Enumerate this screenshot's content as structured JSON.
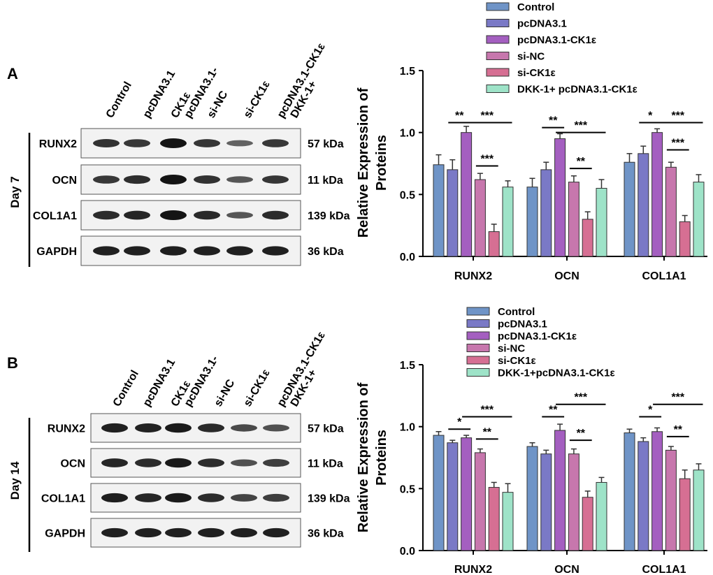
{
  "panels": [
    {
      "letter": "A",
      "day_label": "Day 7",
      "lane_labels": [
        {
          "lines": [
            "Control"
          ]
        },
        {
          "lines": [
            "pcDNA3.1"
          ]
        },
        {
          "lines": [
            "pcDNA3.1-",
            "CK1ε"
          ]
        },
        {
          "lines": [
            "si-NC"
          ]
        },
        {
          "lines": [
            "si-CK1ε"
          ]
        },
        {
          "lines": [
            "DKK-1+",
            "pcDNA3.1-CK1ε"
          ]
        }
      ],
      "blots": [
        {
          "name": "RUNX2",
          "kda": "57 kDa",
          "intensity": [
            0.75,
            0.7,
            1.0,
            0.72,
            0.35,
            0.7
          ]
        },
        {
          "name": "OCN",
          "kda": "11 kDa",
          "intensity": [
            0.7,
            0.78,
            1.0,
            0.75,
            0.45,
            0.72
          ]
        },
        {
          "name": "COL1A1",
          "kda": "139 kDa",
          "intensity": [
            0.8,
            0.85,
            1.0,
            0.82,
            0.45,
            0.8
          ]
        },
        {
          "name": "GAPDH",
          "kda": "36 kDa",
          "intensity": [
            0.9,
            0.9,
            0.92,
            0.9,
            0.9,
            0.9
          ]
        }
      ]
    },
    {
      "letter": "B",
      "day_label": "Day 14",
      "lane_labels": [
        {
          "lines": [
            "Control"
          ]
        },
        {
          "lines": [
            "pcDNA3.1"
          ]
        },
        {
          "lines": [
            "pcDNA3.1-",
            "CK1ε"
          ]
        },
        {
          "lines": [
            "si-NC"
          ]
        },
        {
          "lines": [
            "si-CK1ε"
          ]
        },
        {
          "lines": [
            "DKK-1+",
            "pcDNA3.1-CK1ε"
          ]
        }
      ],
      "blots": [
        {
          "name": "RUNX2",
          "kda": "57 kDa",
          "intensity": [
            0.9,
            0.88,
            0.95,
            0.82,
            0.55,
            0.5
          ]
        },
        {
          "name": "OCN",
          "kda": "11 kDa",
          "intensity": [
            0.85,
            0.8,
            0.95,
            0.8,
            0.5,
            0.65
          ]
        },
        {
          "name": "COL1A1",
          "kda": "139 kDa",
          "intensity": [
            0.92,
            0.85,
            0.95,
            0.8,
            0.6,
            0.65
          ]
        },
        {
          "name": "GAPDH",
          "kda": "36 kDa",
          "intensity": [
            0.9,
            0.9,
            0.9,
            0.9,
            0.9,
            0.9
          ]
        }
      ]
    }
  ],
  "chart_data": [
    {
      "type": "bar",
      "title": "",
      "xlabel": "",
      "ylabel": "Relative  Expression of Proteins",
      "ylabel_lines": [
        "Relative  Expression of",
        "Proteins"
      ],
      "ylim": [
        0,
        1.5
      ],
      "yticks": [
        "0.0",
        "0.5",
        "1.0",
        "1.5"
      ],
      "categories": [
        "RUNX2",
        "OCN",
        "COL1A1"
      ],
      "legend_position": "top-right",
      "series": [
        {
          "name": "Control",
          "color": "#6f94c7",
          "values": [
            0.74,
            0.56,
            0.76
          ],
          "errors": [
            0.08,
            0.07,
            0.07
          ]
        },
        {
          "name": "pcDNA3.1",
          "color": "#7a79c6",
          "values": [
            0.7,
            0.7,
            0.83
          ],
          "errors": [
            0.08,
            0.06,
            0.06
          ]
        },
        {
          "name": "pcDNA3.1-CK1ε",
          "color": "#a45fc0",
          "values": [
            1.0,
            0.95,
            1.0
          ],
          "errors": [
            0.05,
            0.04,
            0.03
          ]
        },
        {
          "name": "si-NC",
          "color": "#c777ad",
          "values": [
            0.62,
            0.6,
            0.72
          ],
          "errors": [
            0.05,
            0.05,
            0.04
          ]
        },
        {
          "name": "si-CK1ε",
          "color": "#d66f93",
          "values": [
            0.2,
            0.3,
            0.28
          ],
          "errors": [
            0.06,
            0.06,
            0.05
          ]
        },
        {
          "name": "DKK-1+ pcDNA3.1-CK1ε",
          "color": "#9ee3c8",
          "values": [
            0.56,
            0.55,
            0.6
          ],
          "errors": [
            0.05,
            0.07,
            0.06
          ]
        }
      ],
      "significance": [
        {
          "group": 0,
          "from": 1,
          "to": 2,
          "label": "**",
          "y": 1.08
        },
        {
          "group": 0,
          "from": 2,
          "to": 5,
          "label": "***",
          "y": 1.08
        },
        {
          "group": 0,
          "from": 3,
          "to": 4,
          "label": "***",
          "y": 0.73
        },
        {
          "group": 1,
          "from": 1,
          "to": 2,
          "label": "**",
          "y": 1.04
        },
        {
          "group": 1,
          "from": 2,
          "to": 5,
          "label": "***",
          "y": 1.0
        },
        {
          "group": 1,
          "from": 3,
          "to": 4,
          "label": "**",
          "y": 0.71
        },
        {
          "group": 2,
          "from": 1,
          "to": 2,
          "label": "*",
          "y": 1.08
        },
        {
          "group": 2,
          "from": 2,
          "to": 5,
          "label": "***",
          "y": 1.08
        },
        {
          "group": 2,
          "from": 3,
          "to": 4,
          "label": "***",
          "y": 0.86
        }
      ]
    },
    {
      "type": "bar",
      "title": "",
      "xlabel": "",
      "ylabel": "Relative  Expression of Proteins",
      "ylabel_lines": [
        "Relative  Expression of",
        "Proteins"
      ],
      "ylim": [
        0,
        1.5
      ],
      "yticks": [
        "0.0",
        "0.5",
        "1.0",
        "1.5"
      ],
      "categories": [
        "RUNX2",
        "OCN",
        "COL1A1"
      ],
      "legend_position": "top-right",
      "series": [
        {
          "name": "Control",
          "color": "#6f94c7",
          "values": [
            0.93,
            0.84,
            0.95
          ],
          "errors": [
            0.03,
            0.03,
            0.03
          ]
        },
        {
          "name": "pcDNA3.1",
          "color": "#7a79c6",
          "values": [
            0.87,
            0.78,
            0.88
          ],
          "errors": [
            0.02,
            0.03,
            0.03
          ]
        },
        {
          "name": "pcDNA3.1-CK1ε",
          "color": "#a45fc0",
          "values": [
            0.91,
            0.97,
            0.96
          ],
          "errors": [
            0.02,
            0.05,
            0.03
          ]
        },
        {
          "name": "si-NC",
          "color": "#c777ad",
          "values": [
            0.79,
            0.78,
            0.81
          ],
          "errors": [
            0.03,
            0.04,
            0.03
          ]
        },
        {
          "name": "si-CK1ε",
          "color": "#d66f93",
          "values": [
            0.51,
            0.43,
            0.58
          ],
          "errors": [
            0.04,
            0.05,
            0.07
          ]
        },
        {
          "name": "DKK-1+pcDNA3.1-CK1ε",
          "color": "#9ee3c8",
          "values": [
            0.47,
            0.55,
            0.65
          ],
          "errors": [
            0.07,
            0.04,
            0.05
          ]
        }
      ],
      "significance": [
        {
          "group": 0,
          "from": 1,
          "to": 2,
          "label": "*",
          "y": 0.98
        },
        {
          "group": 0,
          "from": 2,
          "to": 5,
          "label": "***",
          "y": 1.08
        },
        {
          "group": 0,
          "from": 3,
          "to": 4,
          "label": "**",
          "y": 0.9
        },
        {
          "group": 1,
          "from": 1,
          "to": 2,
          "label": "**",
          "y": 1.08
        },
        {
          "group": 1,
          "from": 2,
          "to": 5,
          "label": "***",
          "y": 1.18
        },
        {
          "group": 1,
          "from": 3,
          "to": 4,
          "label": "**",
          "y": 0.89
        },
        {
          "group": 2,
          "from": 1,
          "to": 2,
          "label": "*",
          "y": 1.08
        },
        {
          "group": 2,
          "from": 2,
          "to": 5,
          "label": "***",
          "y": 1.18
        },
        {
          "group": 2,
          "from": 3,
          "to": 4,
          "label": "**",
          "y": 0.92
        }
      ]
    }
  ]
}
